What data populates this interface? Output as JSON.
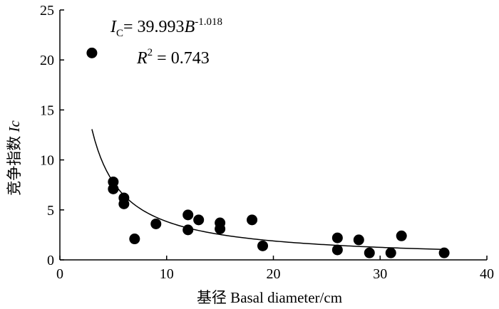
{
  "chart_data": {
    "type": "scatter",
    "title": "",
    "xlabel": "基径 Basal diameter/cm",
    "ylabel_prefix": "竞争指数 ",
    "ylabel_var": "Ic",
    "xlim": [
      0,
      40
    ],
    "ylim": [
      0,
      25
    ],
    "x_ticks": [
      "0",
      "10",
      "20",
      "30",
      "40"
    ],
    "y_ticks": [
      "0",
      "5",
      "10",
      "15",
      "20",
      "25"
    ],
    "grid": false,
    "legend": "none",
    "points": [
      {
        "x": 3,
        "y": 20.7
      },
      {
        "x": 5,
        "y": 7.8
      },
      {
        "x": 5,
        "y": 7.1
      },
      {
        "x": 6,
        "y": 6.2
      },
      {
        "x": 6,
        "y": 5.6
      },
      {
        "x": 7,
        "y": 2.1
      },
      {
        "x": 9,
        "y": 3.6
      },
      {
        "x": 12,
        "y": 4.5
      },
      {
        "x": 12,
        "y": 3.0
      },
      {
        "x": 13,
        "y": 4.0
      },
      {
        "x": 15,
        "y": 3.7
      },
      {
        "x": 15,
        "y": 3.1
      },
      {
        "x": 18,
        "y": 4.0
      },
      {
        "x": 19,
        "y": 1.4
      },
      {
        "x": 26,
        "y": 2.2
      },
      {
        "x": 26,
        "y": 1.0
      },
      {
        "x": 28,
        "y": 2.0
      },
      {
        "x": 29,
        "y": 0.7
      },
      {
        "x": 31,
        "y": 0.7
      },
      {
        "x": 32,
        "y": 2.4
      },
      {
        "x": 36,
        "y": 0.7
      }
    ],
    "fit": {
      "a": 39.993,
      "b": -1.018,
      "x_range": [
        3,
        36
      ],
      "equation_lhs": "I",
      "equation_lhs_sub": "C",
      "equation_coef": "= 39.993",
      "equation_var": "B",
      "equation_exp": "-1.018",
      "r2_label": "R",
      "r2_sup": "2",
      "r2_value": " = 0.743"
    }
  }
}
